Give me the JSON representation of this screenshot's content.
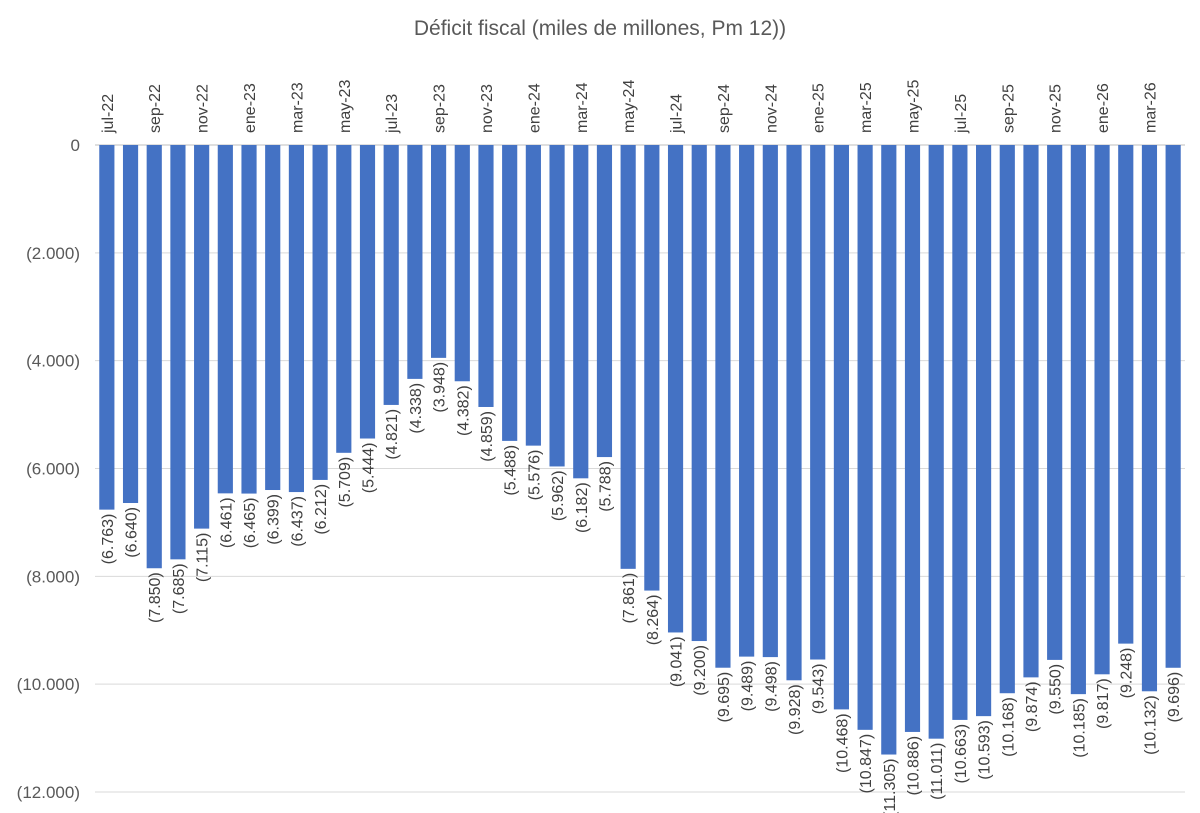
{
  "chart_data": {
    "type": "bar",
    "title": "Déficit fiscal (miles de millones, Pm 12))",
    "xlabel": "",
    "ylabel": "",
    "ylim": [
      -12000,
      0
    ],
    "yticks": [
      {
        "value": 0,
        "label": "0"
      },
      {
        "value": -2000,
        "label": "(2.000)"
      },
      {
        "value": -4000,
        "label": "(4.000)"
      },
      {
        "value": -6000,
        "label": "(6.000)"
      },
      {
        "value": -8000,
        "label": "(8.000)"
      },
      {
        "value": -10000,
        "label": "(10.000)"
      },
      {
        "value": -12000,
        "label": "(12.000)"
      }
    ],
    "grid": true,
    "legend": "none",
    "bar_color": "#4472c4",
    "categories": [
      "jul-22",
      "ago-22",
      "sep-22",
      "oct-22",
      "nov-22",
      "dic-22",
      "ene-23",
      "feb-23",
      "mar-23",
      "abr-23",
      "may-23",
      "jun-23",
      "jul-23",
      "ago-23",
      "sep-23",
      "oct-23",
      "nov-23",
      "dic-23",
      "ene-24",
      "feb-24",
      "mar-24",
      "abr-24",
      "may-24",
      "jun-24",
      "jul-24",
      "ago-24",
      "sep-24",
      "oct-24",
      "nov-24",
      "dic-24",
      "ene-25",
      "feb-25",
      "mar-25",
      "abr-25",
      "may-25",
      "jun-25",
      "jul-25",
      "ago-25",
      "sep-25",
      "oct-25",
      "nov-25",
      "dic-25",
      "ene-26",
      "feb-26",
      "mar-26",
      "abr-26"
    ],
    "shown_tick_labels": [
      "jul-22",
      "sep-22",
      "nov-22",
      "ene-23",
      "mar-23",
      "may-23",
      "jul-23",
      "sep-23",
      "nov-23",
      "ene-24",
      "mar-24",
      "may-24",
      "jul-24",
      "sep-24",
      "nov-24",
      "ene-25",
      "mar-25",
      "may-25",
      "jul-25",
      "sep-25",
      "nov-25",
      "ene-26",
      "mar-26"
    ],
    "values": [
      -6763,
      -6640,
      -7850,
      -7685,
      -7115,
      -6461,
      -6465,
      -6399,
      -6437,
      -6212,
      -5709,
      -5444,
      -4821,
      -4338,
      -3948,
      -4382,
      -4859,
      -5488,
      -5576,
      -5962,
      -6182,
      -5788,
      -7861,
      -8264,
      -9041,
      -9200,
      -9695,
      -9489,
      -9498,
      -9928,
      -9543,
      -10468,
      -10847,
      -11305,
      -10886,
      -11011,
      -10663,
      -10593,
      -10168,
      -9874,
      -9550,
      -10185,
      -9817,
      -9248,
      -10132,
      -9696
    ],
    "data_labels": [
      "(6.763)",
      "(6.640)",
      "(7.850)",
      "(7.685)",
      "(7.115)",
      "(6.461)",
      "(6.465)",
      "(6.399)",
      "(6.437)",
      "(6.212)",
      "(5.709)",
      "(5.444)",
      "(4.821)",
      "(4.338)",
      "(3.948)",
      "(4.382)",
      "(4.859)",
      "(5.488)",
      "(5.576)",
      "(5.962)",
      "(6.182)",
      "(5.788)",
      "(7.861)",
      "(8.264)",
      "(9.041)",
      "(9.200)",
      "(9.695)",
      "(9.489)",
      "(9.498)",
      "(9.928)",
      "(9.543)",
      "(10.468)",
      "(10.847)",
      "(11.305)",
      "(10.886)",
      "(11.011)",
      "(10.663)",
      "(10.593)",
      "(10.168)",
      "(9.874)",
      "(9.550)",
      "(10.185)",
      "(9.817)",
      "(9.248)",
      "(10.132)",
      "(9.696)"
    ]
  }
}
